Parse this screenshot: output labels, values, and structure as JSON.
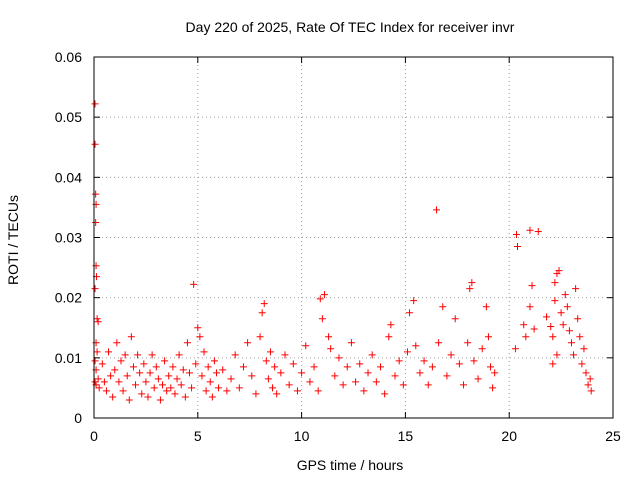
{
  "chart_data": {
    "type": "scatter",
    "title": "Day 220 of 2025, Rate Of TEC Index for receiver invr",
    "xlabel": "GPS time / hours",
    "ylabel": "ROTI / TECUs",
    "xlim": [
      0,
      25
    ],
    "ylim": [
      0,
      0.06
    ],
    "xticks": [
      0,
      5,
      10,
      15,
      20,
      25
    ],
    "xtick_labels": [
      "0",
      "5",
      "10",
      "15",
      "20",
      "25"
    ],
    "yticks": [
      0,
      0.01,
      0.02,
      0.03,
      0.04,
      0.05,
      0.06
    ],
    "ytick_labels": [
      "0",
      "0.01",
      "0.02",
      "0.03",
      "0.04",
      "0.05",
      "0.06"
    ],
    "grid": true,
    "marker": "plus",
    "color": "#ff0000",
    "series": [
      {
        "name": "ROTI",
        "points": [
          [
            0.05,
            0.0522
          ],
          [
            0.05,
            0.0455
          ],
          [
            0.08,
            0.0372
          ],
          [
            0.1,
            0.0355
          ],
          [
            0.08,
            0.0325
          ],
          [
            0.1,
            0.0253
          ],
          [
            0.12,
            0.0235
          ],
          [
            0.05,
            0.0215
          ],
          [
            0.15,
            0.0165
          ],
          [
            0.2,
            0.016
          ],
          [
            0.1,
            0.0125
          ],
          [
            0.15,
            0.011
          ],
          [
            0.05,
            0.0095
          ],
          [
            0.1,
            0.008
          ],
          [
            0.2,
            0.0065
          ],
          [
            0.05,
            0.006
          ],
          [
            0.1,
            0.0055
          ],
          [
            0.25,
            0.005
          ],
          [
            0.4,
            0.009
          ],
          [
            0.5,
            0.006
          ],
          [
            0.6,
            0.0045
          ],
          [
            0.7,
            0.011
          ],
          [
            0.8,
            0.007
          ],
          [
            0.9,
            0.0035
          ],
          [
            1.0,
            0.008
          ],
          [
            1.1,
            0.0125
          ],
          [
            1.2,
            0.006
          ],
          [
            1.3,
            0.0095
          ],
          [
            1.4,
            0.0045
          ],
          [
            1.5,
            0.0105
          ],
          [
            1.6,
            0.007
          ],
          [
            1.7,
            0.003
          ],
          [
            1.8,
            0.0135
          ],
          [
            1.9,
            0.0085
          ],
          [
            2.0,
            0.0055
          ],
          [
            2.1,
            0.0105
          ],
          [
            2.2,
            0.0075
          ],
          [
            2.3,
            0.004
          ],
          [
            2.4,
            0.009
          ],
          [
            2.5,
            0.006
          ],
          [
            2.6,
            0.0035
          ],
          [
            2.7,
            0.0075
          ],
          [
            2.8,
            0.0105
          ],
          [
            2.9,
            0.005
          ],
          [
            3.0,
            0.0085
          ],
          [
            3.1,
            0.0065
          ],
          [
            3.2,
            0.003
          ],
          [
            3.3,
            0.0055
          ],
          [
            3.4,
            0.0095
          ],
          [
            3.5,
            0.0045
          ],
          [
            3.6,
            0.007
          ],
          [
            3.7,
            0.005
          ],
          [
            3.8,
            0.0085
          ],
          [
            3.9,
            0.004
          ],
          [
            4.0,
            0.0065
          ],
          [
            4.1,
            0.0105
          ],
          [
            4.2,
            0.0055
          ],
          [
            4.3,
            0.008
          ],
          [
            4.4,
            0.0035
          ],
          [
            4.5,
            0.0125
          ],
          [
            4.6,
            0.0075
          ],
          [
            4.7,
            0.005
          ],
          [
            4.8,
            0.0222
          ],
          [
            4.9,
            0.009
          ],
          [
            5.0,
            0.015
          ],
          [
            5.1,
            0.0135
          ],
          [
            5.2,
            0.007
          ],
          [
            5.3,
            0.011
          ],
          [
            5.4,
            0.0045
          ],
          [
            5.5,
            0.0085
          ],
          [
            5.6,
            0.006
          ],
          [
            5.7,
            0.0035
          ],
          [
            5.8,
            0.0095
          ],
          [
            5.9,
            0.0075
          ],
          [
            6.0,
            0.005
          ],
          [
            6.2,
            0.008
          ],
          [
            6.4,
            0.0045
          ],
          [
            6.6,
            0.0065
          ],
          [
            6.8,
            0.0105
          ],
          [
            7.0,
            0.005
          ],
          [
            7.2,
            0.0085
          ],
          [
            7.4,
            0.0125
          ],
          [
            7.6,
            0.007
          ],
          [
            7.8,
            0.004
          ],
          [
            8.0,
            0.0135
          ],
          [
            8.1,
            0.0175
          ],
          [
            8.2,
            0.019
          ],
          [
            8.3,
            0.0095
          ],
          [
            8.4,
            0.0065
          ],
          [
            8.5,
            0.011
          ],
          [
            8.6,
            0.005
          ],
          [
            8.7,
            0.0085
          ],
          [
            8.8,
            0.004
          ],
          [
            9.0,
            0.0075
          ],
          [
            9.2,
            0.0105
          ],
          [
            9.4,
            0.0055
          ],
          [
            9.6,
            0.009
          ],
          [
            9.8,
            0.0045
          ],
          [
            10.0,
            0.0075
          ],
          [
            10.2,
            0.012
          ],
          [
            10.4,
            0.006
          ],
          [
            10.6,
            0.0085
          ],
          [
            10.8,
            0.0045
          ],
          [
            10.9,
            0.0198
          ],
          [
            11.1,
            0.0205
          ],
          [
            11.0,
            0.0165
          ],
          [
            11.3,
            0.0135
          ],
          [
            11.4,
            0.0115
          ],
          [
            11.6,
            0.007
          ],
          [
            11.8,
            0.01
          ],
          [
            12.0,
            0.0055
          ],
          [
            12.2,
            0.0085
          ],
          [
            12.4,
            0.0125
          ],
          [
            12.6,
            0.006
          ],
          [
            12.8,
            0.009
          ],
          [
            13.0,
            0.0045
          ],
          [
            13.2,
            0.0075
          ],
          [
            13.4,
            0.0105
          ],
          [
            13.6,
            0.006
          ],
          [
            13.8,
            0.0085
          ],
          [
            14.0,
            0.004
          ],
          [
            14.2,
            0.0135
          ],
          [
            14.3,
            0.0155
          ],
          [
            14.5,
            0.007
          ],
          [
            14.7,
            0.0095
          ],
          [
            14.9,
            0.0055
          ],
          [
            15.1,
            0.011
          ],
          [
            15.2,
            0.0175
          ],
          [
            15.4,
            0.0195
          ],
          [
            15.5,
            0.012
          ],
          [
            15.7,
            0.0075
          ],
          [
            15.9,
            0.0095
          ],
          [
            16.1,
            0.0055
          ],
          [
            16.3,
            0.0085
          ],
          [
            16.5,
            0.0346
          ],
          [
            16.6,
            0.0125
          ],
          [
            16.8,
            0.0185
          ],
          [
            17.0,
            0.007
          ],
          [
            17.2,
            0.0105
          ],
          [
            17.4,
            0.0165
          ],
          [
            17.6,
            0.009
          ],
          [
            17.8,
            0.0055
          ],
          [
            18.0,
            0.0125
          ],
          [
            18.1,
            0.0215
          ],
          [
            18.2,
            0.0225
          ],
          [
            18.3,
            0.0095
          ],
          [
            18.5,
            0.0065
          ],
          [
            18.7,
            0.0115
          ],
          [
            18.9,
            0.0185
          ],
          [
            19.0,
            0.0135
          ],
          [
            19.1,
            0.0085
          ],
          [
            19.2,
            0.005
          ],
          [
            19.3,
            0.0075
          ],
          [
            20.3,
            0.0115
          ],
          [
            20.35,
            0.0305
          ],
          [
            20.4,
            0.0285
          ],
          [
            20.7,
            0.0155
          ],
          [
            20.8,
            0.0135
          ],
          [
            21.0,
            0.0312
          ],
          [
            21.1,
            0.022
          ],
          [
            21.0,
            0.0185
          ],
          [
            21.2,
            0.0148
          ],
          [
            21.4,
            0.031
          ],
          [
            21.8,
            0.0168
          ],
          [
            22.0,
            0.0152
          ],
          [
            22.1,
            0.0135
          ],
          [
            22.2,
            0.0225
          ],
          [
            22.3,
            0.024
          ],
          [
            22.4,
            0.0245
          ],
          [
            22.2,
            0.0195
          ],
          [
            22.5,
            0.0175
          ],
          [
            22.3,
            0.0105
          ],
          [
            22.6,
            0.0155
          ],
          [
            22.1,
            0.009
          ],
          [
            22.7,
            0.0205
          ],
          [
            22.8,
            0.0185
          ],
          [
            22.9,
            0.0145
          ],
          [
            23.0,
            0.0125
          ],
          [
            23.1,
            0.0105
          ],
          [
            23.2,
            0.0215
          ],
          [
            23.3,
            0.0165
          ],
          [
            23.4,
            0.0135
          ],
          [
            23.5,
            0.009
          ],
          [
            23.6,
            0.0115
          ],
          [
            23.7,
            0.0075
          ],
          [
            23.8,
            0.0055
          ],
          [
            23.9,
            0.0065
          ],
          [
            23.95,
            0.0045
          ]
        ]
      }
    ]
  }
}
